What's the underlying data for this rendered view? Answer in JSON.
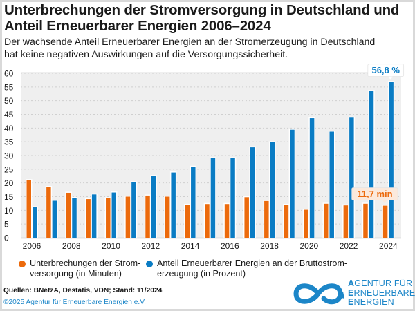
{
  "title_line1": "Unterbrechungen der Stromversorgung in Deutschland und",
  "title_line2": "Anteil Erneuerbarer Energien 2006–2024",
  "subtitle_line1": "Der wachsende Anteil Erneuerbarer Energien an der Stromerzeugung in Deutschland",
  "subtitle_line2": "hat keine negativen Auswirkungen auf die Versorgungssicherheit.",
  "colors": {
    "orange": "#ec6a0c",
    "blue": "#0a7cc4",
    "plot_bg": "#efefef",
    "grid": "#cfcfcf"
  },
  "chart_data": {
    "type": "bar",
    "title": "Unterbrechungen der Stromversorgung in Deutschland und Anteil Erneuerbarer Energien 2006–2024",
    "xlabel": "",
    "ylabel": "",
    "ylim": [
      0,
      60
    ],
    "yticks": [
      0,
      5,
      10,
      15,
      20,
      25,
      30,
      35,
      40,
      45,
      50,
      55,
      60
    ],
    "grid": true,
    "categories": [
      "2006",
      "2007",
      "2008",
      "2009",
      "2010",
      "2011",
      "2012",
      "2013",
      "2014",
      "2015",
      "2016",
      "2017",
      "2018",
      "2019",
      "2020",
      "2021",
      "2022",
      "2023",
      "2024"
    ],
    "xtick_labels": [
      "2006",
      "",
      "2008",
      "",
      "2010",
      "",
      "2012",
      "",
      "2014",
      "",
      "2016",
      "",
      "2018",
      "",
      "2020",
      "",
      "2022",
      "",
      "2024"
    ],
    "series": [
      {
        "name": "Unterbrechungen der Stromversorgung (in Minuten)",
        "color": "#ec6a0c",
        "values": [
          21.0,
          18.5,
          16.4,
          14.1,
          14.4,
          15.0,
          15.4,
          15.0,
          12.0,
          12.3,
          12.3,
          14.8,
          13.4,
          12.0,
          10.2,
          12.4,
          11.8,
          12.4,
          11.7
        ]
      },
      {
        "name": "Anteil Erneuerbarer Energien an der Bruttostromerzeugung (in Prozent)",
        "color": "#0a7cc4",
        "values": [
          11.1,
          13.5,
          14.5,
          15.8,
          16.5,
          20.2,
          22.5,
          23.8,
          25.9,
          29.0,
          29.0,
          33.0,
          34.8,
          39.4,
          43.6,
          38.7,
          43.8,
          53.5,
          56.8
        ]
      }
    ],
    "annotations": [
      {
        "text": "56,8 %",
        "series": 1,
        "category": "2024"
      },
      {
        "text": "11,7 min",
        "series": 0,
        "category": "2024"
      }
    ],
    "legend": "bottom"
  },
  "legend": {
    "item1_line1": "Unterbrechungen der Strom-",
    "item1_line2": "versorgung  (in Minuten)",
    "item2_line1": "Anteil Erneuerbarer Energien an der Bruttostrom-",
    "item2_line2": "erzeugung (in Prozent)"
  },
  "footer": {
    "sources": "Quellen: BNetzA, Destatis, VDN; Stand: 11/2024",
    "copyright": "©2025 Agentur für Erneuerbare Energien e.V."
  },
  "logo": {
    "line1_initial": "A",
    "line1_rest": "GENTUR FÜR",
    "line2_initial": "E",
    "line2_rest": "RNEUERBARE",
    "line3_initial": "E",
    "line3_rest": "NERGIEN"
  }
}
